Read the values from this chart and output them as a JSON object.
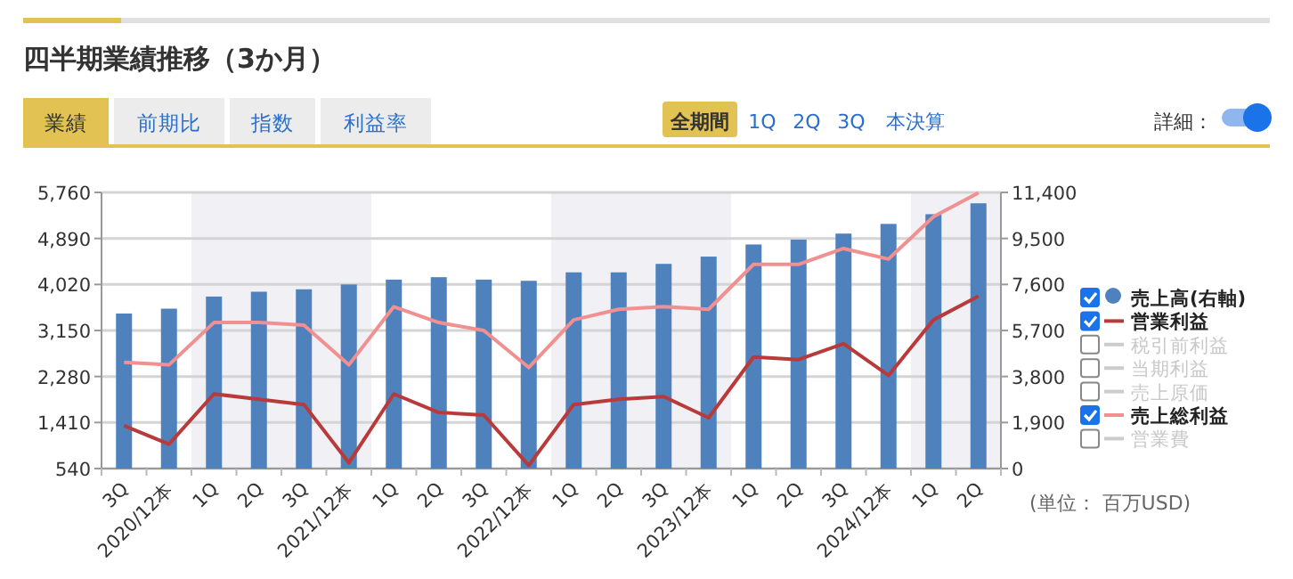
{
  "chart_data": {
    "type": "bar",
    "title": "四半期業績推移（3か月）",
    "categories": [
      "3Q",
      "2020/12本",
      "1Q",
      "2Q",
      "3Q",
      "2021/12本",
      "1Q",
      "2Q",
      "3Q",
      "2022/12本",
      "1Q",
      "2Q",
      "3Q",
      "2023/12本",
      "1Q",
      "2Q",
      "3Q",
      "2024/12本",
      "1Q",
      "2Q"
    ],
    "series": [
      {
        "name": "売上高(右軸)",
        "axis": "y2",
        "color": "#4f81bd",
        "values": [
          6400,
          6600,
          7100,
          7300,
          7400,
          7600,
          7800,
          7900,
          7800,
          7750,
          8100,
          8100,
          8450,
          8750,
          9250,
          9450,
          9700,
          10100,
          10500,
          10950
        ]
      },
      {
        "name": "営業利益",
        "type": "line",
        "color": "#b83a3a",
        "values": [
          1350,
          1000,
          1950,
          1850,
          1750,
          650,
          1950,
          1600,
          1550,
          600,
          1750,
          1850,
          1900,
          1500,
          2650,
          2600,
          2900,
          2300,
          3350,
          3800
        ]
      },
      {
        "name": "税引前利益",
        "type": "line",
        "color": "#cccccc",
        "values": [
          null,
          null,
          null,
          null,
          null,
          null,
          null,
          null,
          null,
          null,
          null,
          null,
          null,
          null,
          null,
          null,
          null,
          null,
          null,
          null
        ]
      },
      {
        "name": "当期利益",
        "type": "line",
        "color": "#cccccc",
        "values": [
          null,
          null,
          null,
          null,
          null,
          null,
          null,
          null,
          null,
          null,
          null,
          null,
          null,
          null,
          null,
          null,
          null,
          null,
          null,
          null
        ]
      },
      {
        "name": "売上原価",
        "type": "line",
        "color": "#cccccc",
        "values": [
          null,
          null,
          null,
          null,
          null,
          null,
          null,
          null,
          null,
          null,
          null,
          null,
          null,
          null,
          null,
          null,
          null,
          null,
          null,
          null
        ]
      },
      {
        "name": "売上総利益",
        "type": "line",
        "color": "#f09090",
        "values": [
          2550,
          2500,
          3300,
          3300,
          3250,
          2500,
          3600,
          3300,
          3150,
          2450,
          3350,
          3550,
          3600,
          3550,
          4400,
          4400,
          4700,
          4500,
          5300,
          5750
        ]
      },
      {
        "name": "営業費",
        "type": "line",
        "color": "#cccccc",
        "values": [
          null,
          null,
          null,
          null,
          null,
          null,
          null,
          null,
          null,
          null,
          null,
          null,
          null,
          null,
          null,
          null,
          null,
          null,
          null,
          null
        ]
      }
    ],
    "ylim": [
      540,
      5760
    ],
    "yticks": [
      {
        "value": 540,
        "label": "540"
      },
      {
        "value": 1410,
        "label": "1,410"
      },
      {
        "value": 2280,
        "label": "2,280"
      },
      {
        "value": 3150,
        "label": "3,150"
      },
      {
        "value": 4020,
        "label": "4,020"
      },
      {
        "value": 4890,
        "label": "4,890"
      },
      {
        "value": 5760,
        "label": "5,760"
      }
    ],
    "y2lim": [
      0,
      11400
    ],
    "y2ticks": [
      0,
      {
        "value": 1900,
        "label": "1,900"
      },
      {
        "value": 3800,
        "label": "3,800"
      },
      {
        "value": 5700,
        "label": "5,700"
      },
      {
        "value": 7600,
        "label": "7,600"
      },
      {
        "value": 9500,
        "label": "9,500"
      },
      {
        "value": 11400,
        "label": "11,400"
      }
    ],
    "grid": "y",
    "legend": "right",
    "annotations": [
      "業績",
      "前期比",
      "指数",
      "利益率",
      "全期間",
      "1Q",
      "2Q",
      "3Q",
      "本決算",
      "詳細：",
      "(単位： 百万USD)"
    ]
  }
}
